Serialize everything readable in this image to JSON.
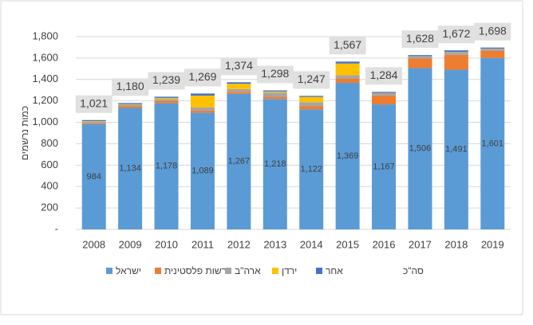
{
  "chart_data": {
    "type": "stacked_bar",
    "y_axis_label": "כמות נרשמים",
    "categories": [
      "2008",
      "2009",
      "2010",
      "2011",
      "2012",
      "2013",
      "2014",
      "2015",
      "2016",
      "2017",
      "2018",
      "2019"
    ],
    "series": [
      {
        "name": "ישראל",
        "color": "#5b9bd5",
        "values": [
          984,
          1134,
          1178,
          1089,
          1267,
          1218,
          1122,
          1369,
          1167,
          1506,
          1491,
          1601
        ],
        "value_labels": [
          "984",
          "1,134",
          "1,178",
          "1,089",
          "1,267",
          "1,218",
          "1,122",
          "1,369",
          "1,167",
          "1,506",
          "1,491",
          "1,601"
        ]
      },
      {
        "name": "רשות פלסטינית",
        "color": "#ed7d31",
        "values": [
          10,
          15,
          20,
          20,
          18,
          20,
          30,
          40,
          85,
          90,
          140,
          65
        ]
      },
      {
        "name": "ארה\"ב",
        "color": "#a5a5a5",
        "values": [
          12,
          15,
          20,
          30,
          25,
          40,
          35,
          30,
          20,
          20,
          25,
          20
        ]
      },
      {
        "name": "ירדן",
        "color": "#ffc000",
        "values": [
          5,
          6,
          10,
          110,
          50,
          10,
          50,
          110,
          2,
          2,
          2,
          2
        ]
      },
      {
        "name": "אחר",
        "color": "#4472c4",
        "values": [
          10,
          10,
          11,
          20,
          14,
          10,
          10,
          18,
          10,
          10,
          14,
          10
        ]
      }
    ],
    "totals": {
      "name": "סה\"כ",
      "values": [
        1021,
        1180,
        1239,
        1269,
        1374,
        1298,
        1247,
        1567,
        1284,
        1628,
        1672,
        1698
      ],
      "value_labels": [
        "1,021",
        "1,180",
        "1,239",
        "1,269",
        "1,374",
        "1,298",
        "1,247",
        "1,567",
        "1,284",
        "1,628",
        "1,672",
        "1,698"
      ]
    },
    "ylim": [
      0,
      1800
    ],
    "yticks": [
      {
        "value": 0,
        "label": "-"
      },
      200,
      400,
      600,
      800,
      {
        "value": 1000,
        "label": "1,000"
      },
      {
        "value": 1200,
        "label": "1,200"
      },
      {
        "value": 1400,
        "label": "1,400"
      },
      {
        "value": 1600,
        "label": "1,600"
      },
      {
        "value": 1800,
        "label": "1,800"
      }
    ],
    "grid": true
  }
}
